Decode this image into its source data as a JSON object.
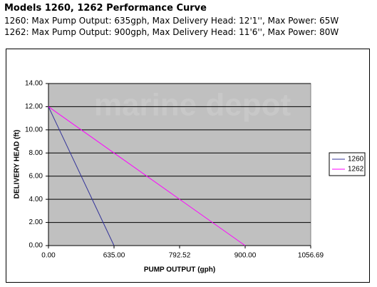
{
  "header": {
    "title": "Models 1260, 1262 Performance Curve",
    "lines": [
      "1260: Max Pump Output: 635gph, Max Delivery Head: 12'1'', Max Power: 65W",
      "1262: Max Pump Output: 900gph, Max Delivery Head: 11'6'', Max Power: 80W"
    ]
  },
  "chart_data": {
    "type": "line",
    "watermark": "marine depot",
    "x_label": "PUMP OUTPUT (gph)",
    "y_label": "DELIVERY HEAD (ft)",
    "categories": [
      "0.00",
      "635.00",
      "792.52",
      "900.00",
      "1056.69"
    ],
    "series": [
      {
        "name": "1260",
        "color": "#333399",
        "values": [
          12,
          0,
          null,
          null,
          null
        ]
      },
      {
        "name": "1262",
        "color": "#ff00ff",
        "values": [
          12,
          8,
          4,
          0,
          null
        ]
      }
    ],
    "ylim": [
      0,
      14
    ],
    "yticks": [
      {
        "value": 0,
        "label": "0.00"
      },
      {
        "value": 2,
        "label": "2.00"
      },
      {
        "value": 4,
        "label": "4.00"
      },
      {
        "value": 6,
        "label": "6.00"
      },
      {
        "value": 8,
        "label": "8.00"
      },
      {
        "value": 10,
        "label": "10.00"
      },
      {
        "value": 12,
        "label": "12.00"
      },
      {
        "value": 14,
        "label": "14.00"
      }
    ],
    "grid": true,
    "plot_color": "#c0c0c0",
    "legend": "right"
  }
}
